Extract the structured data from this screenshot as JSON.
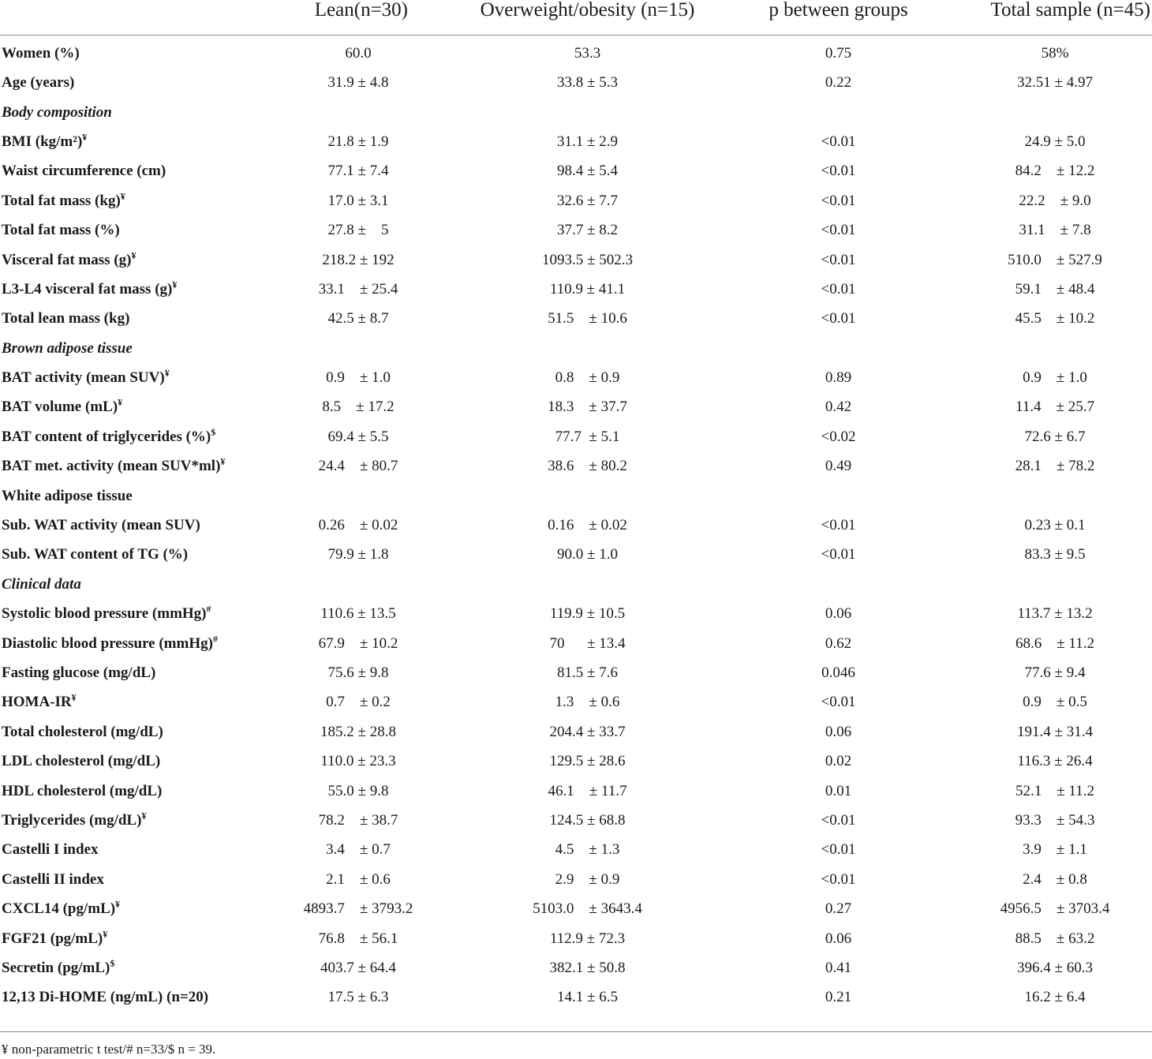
{
  "header": {
    "col0": "",
    "col1": "Lean(n=30)",
    "col2": "Overweight/obesity (n=15)",
    "col3": "p between groups",
    "col4": "Total sample (n=45)"
  },
  "rows": [
    {
      "label": "Women (%)",
      "sup": "",
      "lean": "60.0",
      "over": "53.3",
      "p": "0.75",
      "total": "58%"
    },
    {
      "label": "Age (years)",
      "sup": "",
      "lean": "31.9 ± 4.8",
      "over": "33.8 ± 5.3",
      "p": "0.22",
      "total": "32.51 ± 4.97"
    },
    {
      "section": "Body composition",
      "italic": true
    },
    {
      "label": "BMI (kg/m²)",
      "sup": "¥",
      "lean": "21.8 ± 1.9",
      "over": "31.1 ± 2.9",
      "p": "<0.01",
      "total": "24.9 ± 5.0"
    },
    {
      "label": "Waist circumference (cm)",
      "sup": "",
      "lean": "77.1 ± 7.4",
      "over": "98.4 ± 5.4",
      "p": "<0.01",
      "total": "84.2    ± 12.2"
    },
    {
      "label": "Total fat mass (kg)",
      "sup": "¥",
      "lean": "17.0 ± 3.1",
      "over": "32.6 ± 7.7",
      "p": "<0.01",
      "total": "22.2    ± 9.0"
    },
    {
      "label": "Total fat mass (%)",
      "sup": "",
      "lean": "27.8 ±    5",
      "over": "37.7 ± 8.2",
      "p": "<0.01",
      "total": "31.1    ± 7.8"
    },
    {
      "label": "Visceral fat mass (g)",
      "sup": "¥",
      "lean": "218.2 ± 192",
      "over": "1093.5 ± 502.3",
      "p": "<0.01",
      "total": "510.0    ± 527.9"
    },
    {
      "label": "L3-L4 visceral fat mass (g)",
      "sup": "¥",
      "lean": "33.1    ± 25.4",
      "over": "110.9 ± 41.1",
      "p": "<0.01",
      "total": "59.1    ± 48.4"
    },
    {
      "label": "Total lean mass (kg)",
      "sup": "",
      "lean": "42.5 ± 8.7",
      "over": "51.5    ± 10.6",
      "p": "<0.01",
      "total": "45.5    ± 10.2"
    },
    {
      "section": "Brown adipose tissue",
      "italic": true
    },
    {
      "label": "BAT activity (mean SUV)",
      "sup": "¥",
      "lean": "0.9    ± 1.0",
      "over": "0.8    ± 0.9",
      "p": "0.89",
      "total": "0.9    ± 1.0"
    },
    {
      "label": "BAT volume (mL)",
      "sup": "¥",
      "lean": "8.5    ± 17.2",
      "over": "18.3    ± 37.7",
      "p": "0.42",
      "total": "11.4    ± 25.7"
    },
    {
      "label": "BAT content of triglycerides (%)",
      "sup": "$",
      "lean": "69.4 ± 5.5",
      "over": "77.7  ± 5.1",
      "p": "<0.02",
      "total": "72.6 ± 6.7"
    },
    {
      "label": "BAT met. activity (mean SUV*ml)",
      "sup": "¥",
      "lean": "24.4    ± 80.7",
      "over": "38.6    ± 80.2",
      "p": "0.49",
      "total": "28.1    ± 78.2"
    },
    {
      "section": "White adipose tissue",
      "italic": false
    },
    {
      "label": "Sub. WAT activity (mean SUV)",
      "sup": "",
      "lean": "0.26    ± 0.02",
      "over": "0.16    ± 0.02",
      "p": "<0.01",
      "total": "0.23 ± 0.1"
    },
    {
      "label": "Sub. WAT content of TG (%)",
      "sup": "",
      "lean": "79.9 ± 1.8",
      "over": "90.0 ± 1.0",
      "p": "<0.01",
      "total": "83.3 ± 9.5"
    },
    {
      "section": "Clinical data",
      "italic": true
    },
    {
      "label": "Systolic blood pressure (mmHg)",
      "sup": "#",
      "lean": "110.6 ± 13.5",
      "over": "119.9 ± 10.5",
      "p": "0.06",
      "total": "113.7 ± 13.2"
    },
    {
      "label": "Diastolic blood pressure (mmHg)",
      "sup": "#",
      "lean": "67.9    ± 10.2",
      "over": "70      ± 13.4",
      "p": "0.62",
      "total": "68.6    ± 11.2"
    },
    {
      "label": "Fasting glucose (mg/dL)",
      "sup": "",
      "lean": "75.6 ± 9.8",
      "over": "81.5 ± 7.6",
      "p": "0.046",
      "total": "77.6 ± 9.4"
    },
    {
      "label": "HOMA-IR",
      "sup": "¥",
      "lean": "0.7    ± 0.2",
      "over": "1.3    ± 0.6",
      "p": "<0.01",
      "total": "0.9    ± 0.5"
    },
    {
      "label": "Total cholesterol (mg/dL)",
      "sup": "",
      "lean": "185.2 ± 28.8",
      "over": "204.4 ± 33.7",
      "p": "0.06",
      "total": "191.4 ± 31.4"
    },
    {
      "label": "LDL cholesterol (mg/dL)",
      "sup": "",
      "lean": "110.0 ± 23.3",
      "over": "129.5 ± 28.6",
      "p": "0.02",
      "total": "116.3 ± 26.4"
    },
    {
      "label": "HDL cholesterol (mg/dL)",
      "sup": "",
      "lean": "55.0 ± 9.8",
      "over": "46.1    ± 11.7",
      "p": "0.01",
      "total": "52.1    ± 11.2"
    },
    {
      "label": "Triglycerides (mg/dL)",
      "sup": "¥",
      "lean": "78.2    ± 38.7",
      "over": "124.5 ± 68.8",
      "p": "<0.01",
      "total": "93.3    ± 54.3"
    },
    {
      "label": "Castelli I index",
      "sup": "",
      "lean": "3.4    ± 0.7",
      "over": "4.5    ± 1.3",
      "p": "<0.01",
      "total": "3.9    ± 1.1"
    },
    {
      "label": "Castelli II index",
      "sup": "",
      "lean": "2.1    ± 0.6",
      "over": "2.9    ± 0.9",
      "p": "<0.01",
      "total": "2.4    ± 0.8"
    },
    {
      "label": "CXCL14 (pg/mL)",
      "sup": "¥",
      "lean": "4893.7    ± 3793.2",
      "over": "5103.0    ± 3643.4",
      "p": "0.27",
      "total": "4956.5    ± 3703.4"
    },
    {
      "label": "FGF21 (pg/mL)",
      "sup": "¥",
      "lean": "76.8    ± 56.1",
      "over": "112.9 ± 72.3",
      "p": "0.06",
      "total": "88.5    ± 63.2"
    },
    {
      "label": "Secretin (pg/mL)",
      "sup": "$",
      "lean": "403.7 ± 64.4",
      "over": "382.1 ± 50.8",
      "p": "0.41",
      "total": "396.4 ± 60.3"
    },
    {
      "label": "12,13 Di-HOME (ng/mL) (n=20)",
      "sup": "",
      "lean": "17.5 ± 6.3",
      "over": "14.1 ± 6.5",
      "p": "0.21",
      "total": "16.2 ± 6.4"
    }
  ],
  "footnote": "¥ non-parametric t test/# n=33/$ n = 39."
}
